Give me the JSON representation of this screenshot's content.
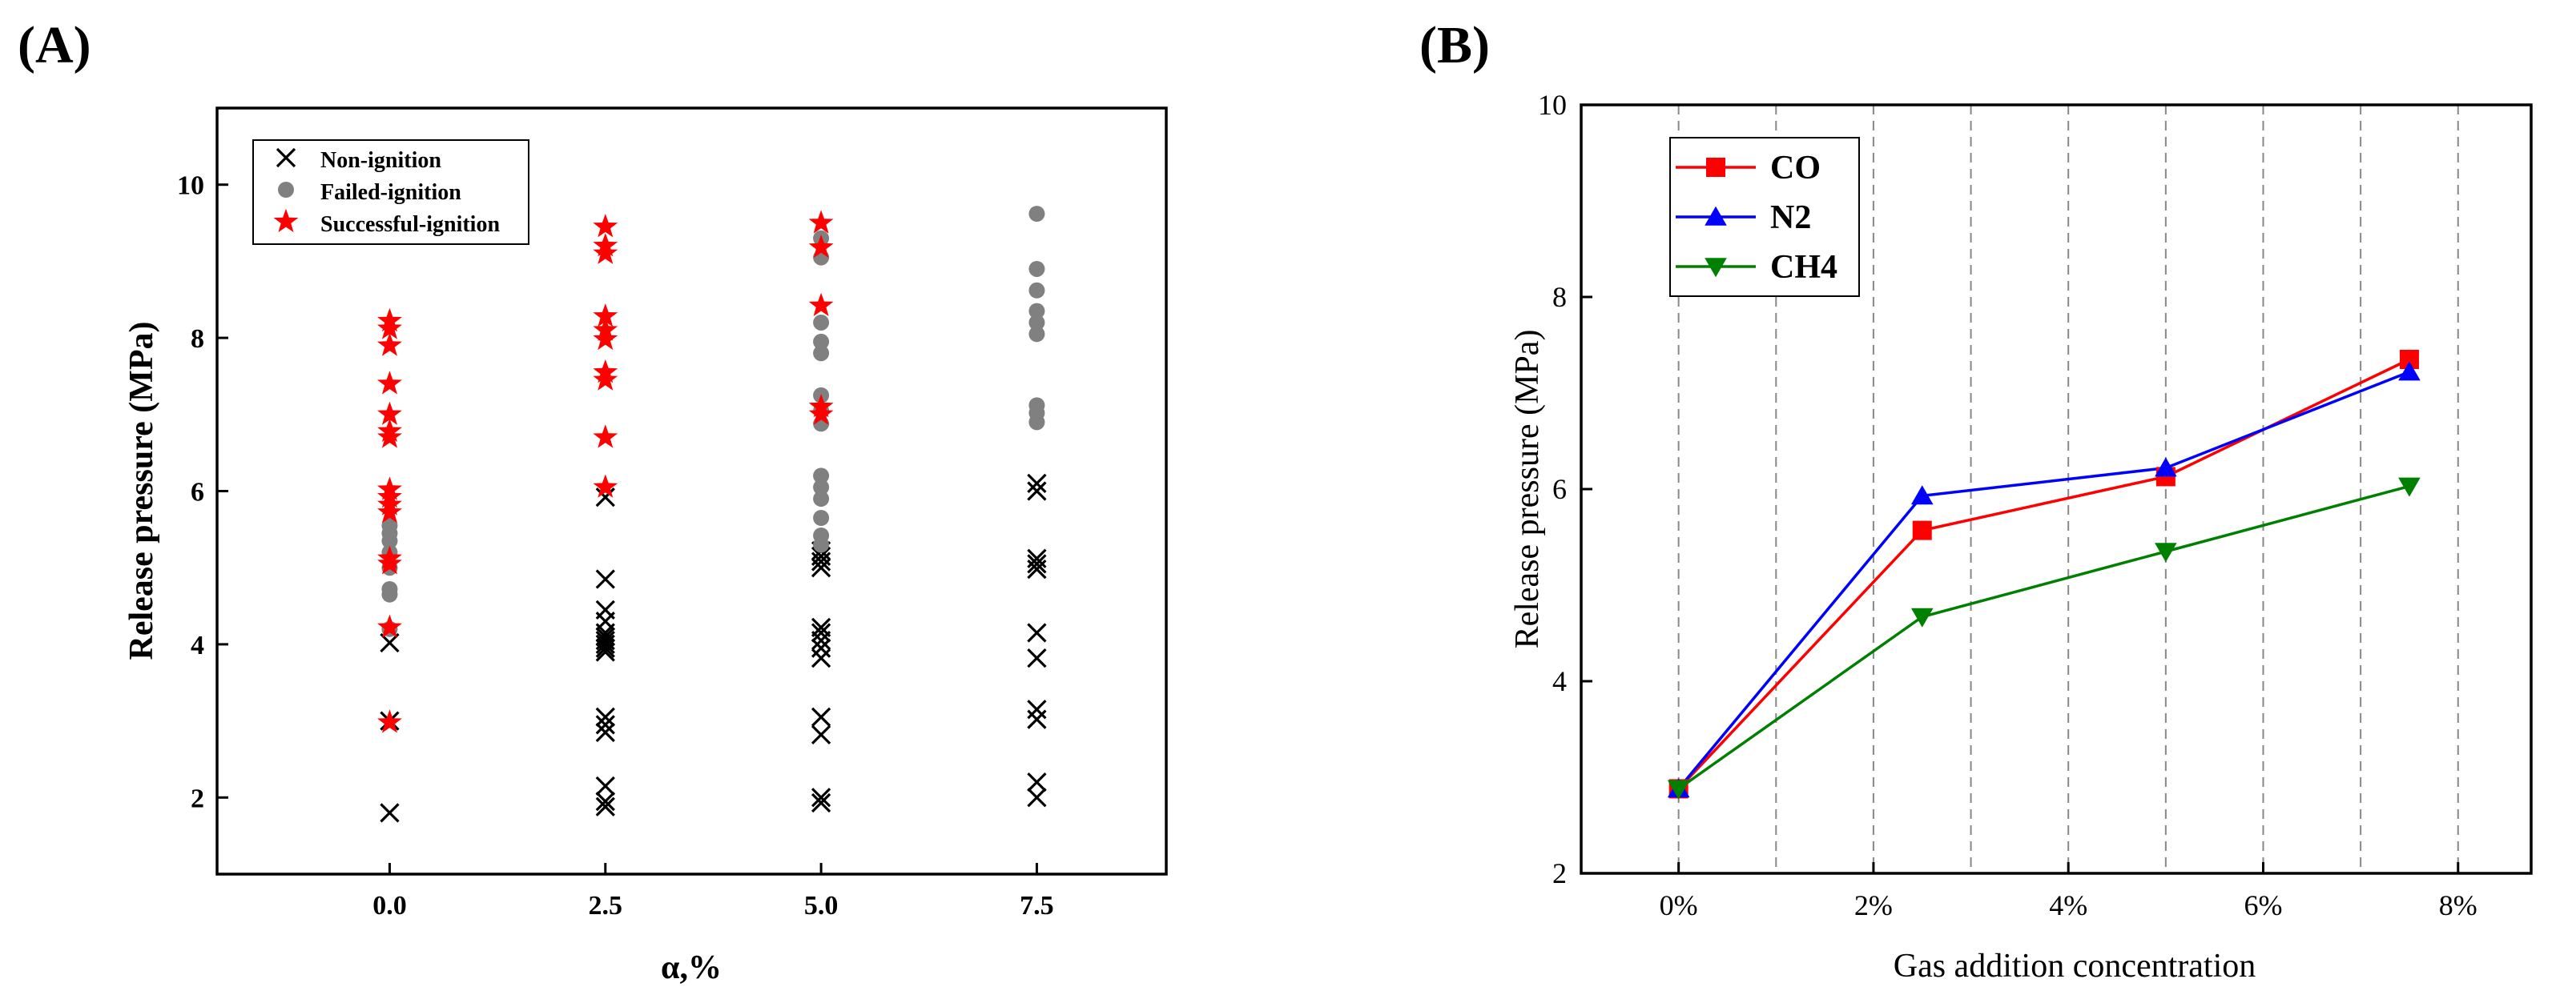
{
  "chart_data": [
    {
      "panel_label": "(A)",
      "type": "scatter",
      "xlabel": "α,%",
      "ylabel": "Release pressure (MPa)",
      "xlim": [
        -2,
        9
      ],
      "ylim": [
        1,
        11
      ],
      "xticks": [
        0.0,
        2.5,
        5.0,
        7.5
      ],
      "xtick_labels": [
        "0.0",
        "2.5",
        "5.0",
        "7.5"
      ],
      "yticks": [
        2,
        4,
        6,
        8,
        10
      ],
      "ytick_labels": [
        "2",
        "4",
        "6",
        "8",
        "10"
      ],
      "legend_position": "top-left",
      "series": [
        {
          "name": "Non-ignition",
          "marker": "x",
          "color": "#000000",
          "points": [
            [
              0.0,
              1.8
            ],
            [
              0.0,
              3.0
            ],
            [
              0.0,
              4.02
            ],
            [
              2.5,
              1.88
            ],
            [
              2.5,
              1.95
            ],
            [
              2.5,
              2.15
            ],
            [
              2.5,
              2.85
            ],
            [
              2.5,
              2.95
            ],
            [
              2.5,
              3.05
            ],
            [
              2.5,
              3.9
            ],
            [
              2.5,
              3.95
            ],
            [
              2.5,
              4.0
            ],
            [
              2.5,
              4.05
            ],
            [
              2.5,
              4.1
            ],
            [
              2.5,
              4.15
            ],
            [
              2.5,
              4.3
            ],
            [
              2.5,
              4.45
            ],
            [
              2.5,
              4.85
            ],
            [
              2.5,
              5.92
            ],
            [
              5.0,
              1.93
            ],
            [
              5.0,
              2.0
            ],
            [
              5.0,
              2.82
            ],
            [
              5.0,
              3.05
            ],
            [
              5.0,
              3.82
            ],
            [
              5.0,
              3.95
            ],
            [
              5.0,
              4.05
            ],
            [
              5.0,
              4.15
            ],
            [
              5.0,
              4.22
            ],
            [
              5.0,
              5.0
            ],
            [
              5.0,
              5.08
            ],
            [
              5.0,
              5.15
            ],
            [
              5.0,
              5.22
            ],
            [
              7.5,
              2.0
            ],
            [
              7.5,
              2.2
            ],
            [
              7.5,
              3.02
            ],
            [
              7.5,
              3.15
            ],
            [
              7.5,
              3.82
            ],
            [
              7.5,
              4.15
            ],
            [
              7.5,
              4.98
            ],
            [
              7.5,
              5.05
            ],
            [
              7.5,
              5.12
            ],
            [
              7.5,
              6.0
            ],
            [
              7.5,
              6.1
            ]
          ]
        },
        {
          "name": "Failed-ignition",
          "marker": "circle",
          "color": "#808080",
          "points": [
            [
              0.0,
              4.2
            ],
            [
              0.0,
              4.65
            ],
            [
              0.0,
              4.72
            ],
            [
              0.0,
              5.0
            ],
            [
              0.0,
              5.2
            ],
            [
              0.0,
              5.35
            ],
            [
              0.0,
              5.45
            ],
            [
              0.0,
              5.55
            ],
            [
              5.0,
              5.3
            ],
            [
              5.0,
              5.42
            ],
            [
              5.0,
              5.65
            ],
            [
              5.0,
              5.9
            ],
            [
              5.0,
              6.05
            ],
            [
              5.0,
              6.2
            ],
            [
              5.0,
              6.88
            ],
            [
              5.0,
              7.05
            ],
            [
              5.0,
              7.25
            ],
            [
              5.0,
              7.8
            ],
            [
              5.0,
              7.95
            ],
            [
              5.0,
              8.2
            ],
            [
              5.0,
              9.05
            ],
            [
              5.0,
              9.3
            ],
            [
              7.5,
              6.9
            ],
            [
              7.5,
              7.02
            ],
            [
              7.5,
              7.12
            ],
            [
              7.5,
              8.05
            ],
            [
              7.5,
              8.2
            ],
            [
              7.5,
              8.35
            ],
            [
              7.5,
              8.62
            ],
            [
              7.5,
              8.9
            ],
            [
              7.5,
              9.62
            ]
          ]
        },
        {
          "name": "Successful-ignition",
          "marker": "star",
          "color": "#ff0000",
          "points": [
            [
              0.0,
              2.98
            ],
            [
              0.0,
              4.22
            ],
            [
              0.0,
              5.05
            ],
            [
              0.0,
              5.12
            ],
            [
              0.0,
              5.72
            ],
            [
              0.0,
              5.82
            ],
            [
              0.0,
              5.92
            ],
            [
              0.0,
              6.02
            ],
            [
              0.0,
              6.7
            ],
            [
              0.0,
              6.78
            ],
            [
              0.0,
              7.0
            ],
            [
              0.0,
              7.4
            ],
            [
              0.0,
              7.9
            ],
            [
              0.0,
              8.12
            ],
            [
              0.0,
              8.22
            ],
            [
              2.5,
              6.05
            ],
            [
              2.5,
              6.7
            ],
            [
              2.5,
              7.45
            ],
            [
              2.5,
              7.55
            ],
            [
              2.5,
              7.98
            ],
            [
              2.5,
              8.1
            ],
            [
              2.5,
              8.28
            ],
            [
              2.5,
              9.1
            ],
            [
              2.5,
              9.2
            ],
            [
              2.5,
              9.45
            ],
            [
              5.0,
              7.0
            ],
            [
              5.0,
              7.1
            ],
            [
              5.0,
              8.42
            ],
            [
              5.0,
              9.18
            ],
            [
              5.0,
              9.5
            ]
          ]
        }
      ]
    },
    {
      "panel_label": "(B)",
      "type": "line",
      "xlabel": "Gas addition concentration",
      "ylabel": "Release pressure (MPa)",
      "xlim": [
        -1.0,
        8.75
      ],
      "ylim": [
        2,
        10
      ],
      "xticks": [
        0,
        2,
        4,
        6,
        8
      ],
      "xtick_labels": [
        "0%",
        "2%",
        "4%",
        "6%",
        "8%"
      ],
      "yticks": [
        2,
        4,
        6,
        8,
        10
      ],
      "ytick_labels": [
        "2",
        "4",
        "6",
        "8",
        "10"
      ],
      "gridlines_x": [
        0,
        1,
        2,
        3,
        4,
        5,
        6,
        7,
        8
      ],
      "legend_position": "top-left",
      "x": [
        0,
        2.5,
        5.0,
        7.5
      ],
      "series": [
        {
          "name": "CO",
          "marker": "square",
          "color": "#ff0000",
          "values": [
            2.88,
            5.57,
            6.13,
            7.35
          ]
        },
        {
          "name": "N2",
          "marker": "triangle-up",
          "color": "#0000ff",
          "values": [
            2.88,
            5.93,
            6.22,
            7.22
          ]
        },
        {
          "name": "CH4",
          "marker": "triangle-down",
          "color": "#008000",
          "values": [
            2.88,
            4.67,
            5.35,
            6.03
          ]
        }
      ]
    }
  ]
}
